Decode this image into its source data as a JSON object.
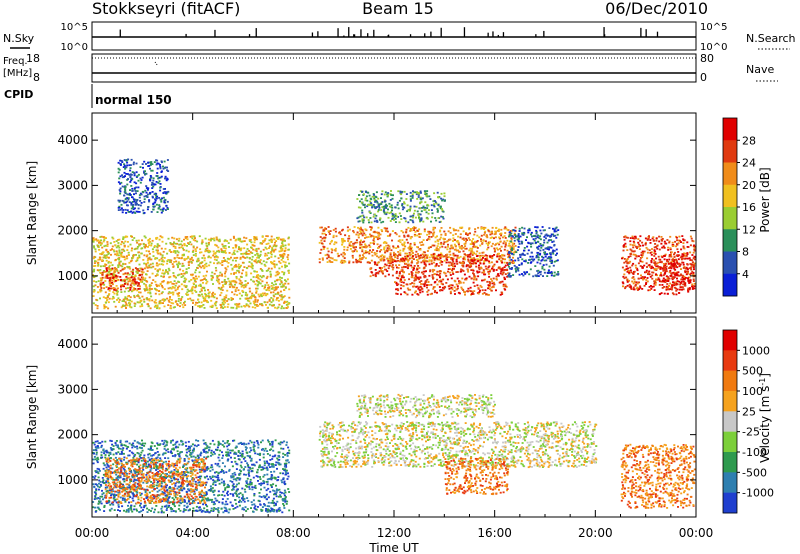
{
  "header": {
    "station": "Stokkseyri (fitACF)",
    "beam": "Beam 15",
    "date": "06/Dec/2010"
  },
  "top_panels": {
    "nsky_label": "N.Sky",
    "nsearch_label": "N.Search",
    "nsky_ticks": [
      "10^5",
      "10^0"
    ],
    "nsearch_ticks": [
      "10^5",
      "10^0"
    ],
    "freq_label_line1": "Freq.",
    "freq_label_line2": "[MHz]",
    "freq_ticks": [
      "18",
      "8"
    ],
    "nave_label": "Nave",
    "nave_ticks": [
      "80",
      "0"
    ],
    "cpid_label": "CPID",
    "cpid_value": "normal 150"
  },
  "chart_data": [
    {
      "type": "heatmap",
      "title": "",
      "quantity": "Power",
      "ylabel": "Slant Range [km]",
      "xlabel": "",
      "ylim": [
        180,
        4600
      ],
      "yticks": [
        1000,
        2000,
        3000,
        4000
      ],
      "xlim": [
        0,
        24
      ],
      "xticks": [
        "00:00",
        "04:00",
        "08:00",
        "12:00",
        "16:00",
        "20:00",
        "00:00"
      ],
      "colorbar": {
        "label": "Power [dB]",
        "ticks": [
          "4",
          "8",
          "12",
          "16",
          "20",
          "24",
          "28"
        ],
        "colors": [
          "#0a1fd6",
          "#2a50b0",
          "#2a8f5a",
          "#9acd32",
          "#f0c020",
          "#f08c1a",
          "#e03a10",
          "#e00000"
        ]
      },
      "regions": [
        {
          "t0": 0.0,
          "t1": 7.8,
          "r0": 300,
          "r1": 1900,
          "level": 4
        },
        {
          "t0": 0.3,
          "t1": 2.0,
          "r0": 700,
          "r1": 1200,
          "level": 6
        },
        {
          "t0": 1.0,
          "t1": 3.0,
          "r0": 2400,
          "r1": 3600,
          "level": 1
        },
        {
          "t0": 9.0,
          "t1": 16.8,
          "r0": 1300,
          "r1": 2100,
          "level": 5
        },
        {
          "t0": 11.0,
          "t1": 16.5,
          "r0": 1000,
          "r1": 1500,
          "level": 6
        },
        {
          "t0": 12.0,
          "t1": 16.5,
          "r0": 600,
          "r1": 1000,
          "level": 6
        },
        {
          "t0": 10.5,
          "t1": 14.0,
          "r0": 2200,
          "r1": 2900,
          "level": 2
        },
        {
          "t0": 16.5,
          "t1": 18.5,
          "r0": 1000,
          "r1": 2100,
          "level": 1
        },
        {
          "t0": 21.0,
          "t1": 24.0,
          "r0": 700,
          "r1": 1900,
          "level": 6
        },
        {
          "t0": 22.5,
          "t1": 24.0,
          "r0": 600,
          "r1": 1500,
          "level": 7
        }
      ]
    },
    {
      "type": "heatmap",
      "title": "",
      "quantity": "Velocity",
      "ylabel": "Slant Range [km]",
      "xlabel": "Time UT",
      "ylim": [
        180,
        4600
      ],
      "yticks": [
        1000,
        2000,
        3000,
        4000
      ],
      "xlim": [
        0,
        24
      ],
      "xticks": [
        "00:00",
        "04:00",
        "08:00",
        "12:00",
        "16:00",
        "20:00",
        "00:00"
      ],
      "colorbar": {
        "label": "Velocity [m s^-1]",
        "ticks": [
          "1000",
          "500",
          "100",
          "25",
          "-25",
          "-100",
          "-500",
          "-1000"
        ],
        "colors": [
          "#1f3fcf",
          "#2e7fb0",
          "#2e9a4e",
          "#7ccf3a",
          "#c8c8c8",
          "#f5a21e",
          "#f07a10",
          "#e83a10",
          "#e00000"
        ]
      },
      "regions": [
        {
          "t0": 0.0,
          "t1": 7.8,
          "r0": 300,
          "r1": 1900,
          "level": 1
        },
        {
          "t0": 0.5,
          "t1": 4.5,
          "r0": 500,
          "r1": 1500,
          "level": 6
        },
        {
          "t0": 9.0,
          "t1": 20.0,
          "r0": 1300,
          "r1": 2300,
          "level": 4
        },
        {
          "t0": 10.5,
          "t1": 16.0,
          "r0": 2400,
          "r1": 2900,
          "level": 4
        },
        {
          "t0": 14.0,
          "t1": 16.5,
          "r0": 700,
          "r1": 1500,
          "level": 6
        },
        {
          "t0": 21.0,
          "t1": 24.0,
          "r0": 400,
          "r1": 1800,
          "level": 6
        }
      ]
    }
  ]
}
